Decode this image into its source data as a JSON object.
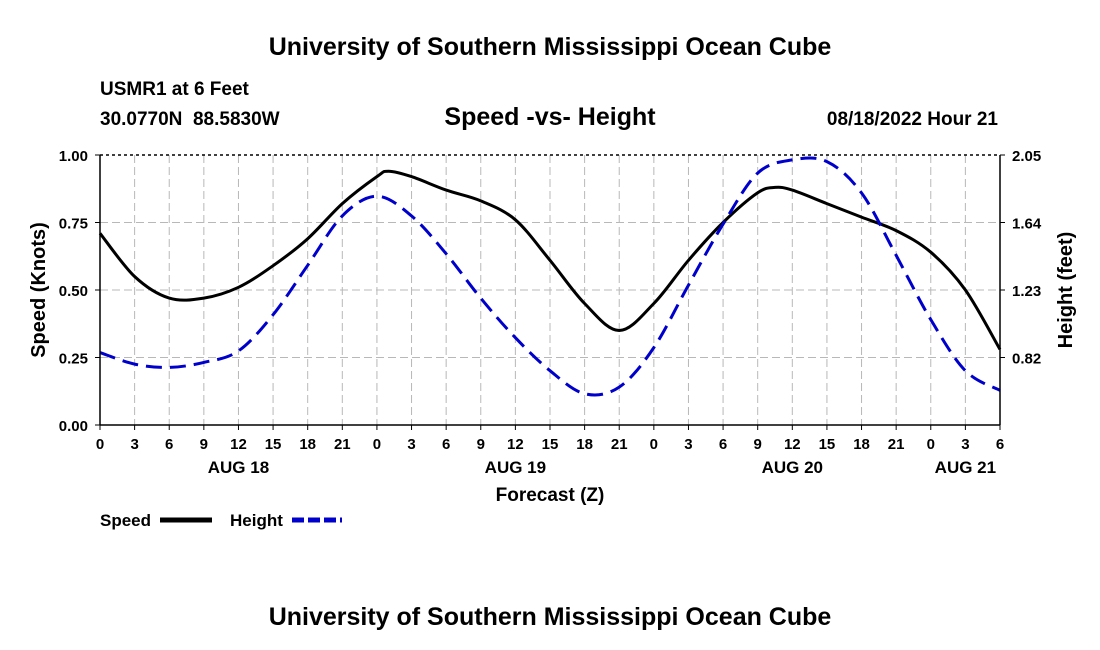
{
  "header": {
    "title": "University of Southern Mississippi Ocean Cube",
    "station": "USMR1 at 6 Feet",
    "coords": "30.0770N  88.5830W",
    "chart_title": "Speed -vs- Height",
    "datetime": "08/18/2022 Hour 21"
  },
  "footer": {
    "title": "University of Southern Mississippi Ocean Cube"
  },
  "colors": {
    "speed": "#000000",
    "height": "#0000cc",
    "grid": "#b8b8b8"
  },
  "chart_data": {
    "type": "line",
    "title": "Speed -vs- Height",
    "xlabel": "Forecast (Z)",
    "ylabel": "Speed (Knots)",
    "y2label": "Height (feet)",
    "x_hours_from_aug18_00z": {
      "min": 0,
      "max": 78
    },
    "ylim": [
      0,
      1.0
    ],
    "y2lim": [
      0.41,
      2.05
    ],
    "x_ticks": [
      {
        "h": 0,
        "label": "0"
      },
      {
        "h": 3,
        "label": "3"
      },
      {
        "h": 6,
        "label": "6"
      },
      {
        "h": 9,
        "label": "9"
      },
      {
        "h": 12,
        "label": "12"
      },
      {
        "h": 15,
        "label": "15"
      },
      {
        "h": 18,
        "label": "18"
      },
      {
        "h": 21,
        "label": "21"
      },
      {
        "h": 24,
        "label": "0"
      },
      {
        "h": 27,
        "label": "3"
      },
      {
        "h": 30,
        "label": "6"
      },
      {
        "h": 33,
        "label": "9"
      },
      {
        "h": 36,
        "label": "12"
      },
      {
        "h": 39,
        "label": "15"
      },
      {
        "h": 42,
        "label": "18"
      },
      {
        "h": 45,
        "label": "21"
      },
      {
        "h": 48,
        "label": "0"
      },
      {
        "h": 51,
        "label": "3"
      },
      {
        "h": 54,
        "label": "6"
      },
      {
        "h": 57,
        "label": "9"
      },
      {
        "h": 60,
        "label": "12"
      },
      {
        "h": 63,
        "label": "15"
      },
      {
        "h": 66,
        "label": "18"
      },
      {
        "h": 69,
        "label": "21"
      },
      {
        "h": 72,
        "label": "0"
      },
      {
        "h": 75,
        "label": "3"
      },
      {
        "h": 78,
        "label": "6"
      }
    ],
    "day_labels": [
      {
        "h": 12,
        "label": "AUG 18"
      },
      {
        "h": 36,
        "label": "AUG 19"
      },
      {
        "h": 60,
        "label": "AUG 20"
      },
      {
        "h": 75,
        "label": "AUG 21"
      }
    ],
    "y_ticks": [
      {
        "v": 0.0,
        "label": "0.00"
      },
      {
        "v": 0.25,
        "label": "0.25"
      },
      {
        "v": 0.5,
        "label": "0.50"
      },
      {
        "v": 0.75,
        "label": "0.75"
      },
      {
        "v": 1.0,
        "label": "1.00"
      }
    ],
    "y2_ticks": [
      {
        "v": 0.82,
        "label": "0.82"
      },
      {
        "v": 1.23,
        "label": "1.23"
      },
      {
        "v": 1.64,
        "label": "1.64"
      },
      {
        "v": 2.05,
        "label": "2.05"
      }
    ],
    "series": [
      {
        "name": "Speed",
        "axis": "left",
        "style": "solid",
        "points": [
          [
            0,
            0.71
          ],
          [
            3,
            0.55
          ],
          [
            6,
            0.47
          ],
          [
            9,
            0.47
          ],
          [
            12,
            0.51
          ],
          [
            15,
            0.59
          ],
          [
            18,
            0.69
          ],
          [
            21,
            0.82
          ],
          [
            24,
            0.92
          ],
          [
            25,
            0.94
          ],
          [
            27,
            0.92
          ],
          [
            30,
            0.87
          ],
          [
            33,
            0.83
          ],
          [
            36,
            0.76
          ],
          [
            39,
            0.61
          ],
          [
            42,
            0.45
          ],
          [
            45,
            0.35
          ],
          [
            48,
            0.45
          ],
          [
            51,
            0.61
          ],
          [
            54,
            0.75
          ],
          [
            57,
            0.86
          ],
          [
            58.5,
            0.88
          ],
          [
            60,
            0.87
          ],
          [
            63,
            0.82
          ],
          [
            66,
            0.77
          ],
          [
            69,
            0.72
          ],
          [
            72,
            0.64
          ],
          [
            75,
            0.5
          ],
          [
            78,
            0.28
          ]
        ]
      },
      {
        "name": "Height",
        "axis": "right",
        "style": "dashed",
        "points": [
          [
            0,
            0.85
          ],
          [
            3,
            0.78
          ],
          [
            6,
            0.76
          ],
          [
            9,
            0.79
          ],
          [
            12,
            0.86
          ],
          [
            15,
            1.08
          ],
          [
            18,
            1.38
          ],
          [
            21,
            1.68
          ],
          [
            24,
            1.8
          ],
          [
            27,
            1.68
          ],
          [
            30,
            1.45
          ],
          [
            33,
            1.18
          ],
          [
            36,
            0.94
          ],
          [
            39,
            0.74
          ],
          [
            42,
            0.6
          ],
          [
            45,
            0.64
          ],
          [
            48,
            0.88
          ],
          [
            51,
            1.26
          ],
          [
            54,
            1.63
          ],
          [
            57,
            1.94
          ],
          [
            60,
            2.02
          ],
          [
            63,
            2.01
          ],
          [
            66,
            1.82
          ],
          [
            69,
            1.44
          ],
          [
            72,
            1.05
          ],
          [
            75,
            0.74
          ],
          [
            78,
            0.62
          ]
        ]
      }
    ],
    "legend": [
      {
        "name": "Speed",
        "label": "Speed"
      },
      {
        "name": "Height",
        "label": "Height"
      }
    ]
  }
}
